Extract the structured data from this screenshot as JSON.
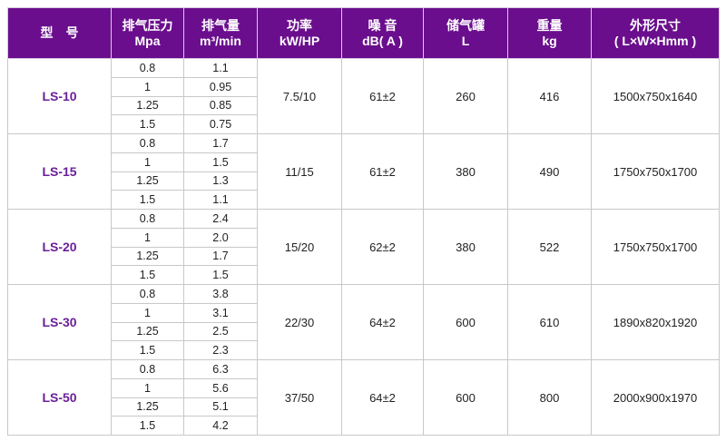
{
  "headers": [
    {
      "l1": "型　号",
      "l2": ""
    },
    {
      "l1": "排气压力",
      "l2": "Mpa"
    },
    {
      "l1": "排气量",
      "l2": "m³/min"
    },
    {
      "l1": "功率",
      "l2": "kW/HP"
    },
    {
      "l1": "噪 音",
      "l2": "dB( A )"
    },
    {
      "l1": "储气罐",
      "l2": "L"
    },
    {
      "l1": "重量",
      "l2": "kg"
    },
    {
      "l1": "外形尺寸",
      "l2": "( L×W×Hmm )"
    }
  ],
  "colors": {
    "header_bg": "#6a0e8d",
    "model_text": "#6b1f9a"
  },
  "rows": [
    {
      "model": "LS-10",
      "pressure": [
        "0.8",
        "1",
        "1.25",
        "1.5"
      ],
      "flow": [
        "1.1",
        "0.95",
        "0.85",
        "0.75"
      ],
      "power": "7.5/10",
      "noise": "61±2",
      "tank": "260",
      "weight": "416",
      "size": "1500x750x1640"
    },
    {
      "model": "LS-15",
      "pressure": [
        "0.8",
        "1",
        "1.25",
        "1.5"
      ],
      "flow": [
        "1.7",
        "1.5",
        "1.3",
        "1.1"
      ],
      "power": "11/15",
      "noise": "61±2",
      "tank": "380",
      "weight": "490",
      "size": "1750x750x1700"
    },
    {
      "model": "LS-20",
      "pressure": [
        "0.8",
        "1",
        "1.25",
        "1.5"
      ],
      "flow": [
        "2.4",
        "2.0",
        "1.7",
        "1.5"
      ],
      "power": "15/20",
      "noise": "62±2",
      "tank": "380",
      "weight": "522",
      "size": "1750x750x1700"
    },
    {
      "model": "LS-30",
      "pressure": [
        "0.8",
        "1",
        "1.25",
        "1.5"
      ],
      "flow": [
        "3.8",
        "3.1",
        "2.5",
        "2.3"
      ],
      "power": "22/30",
      "noise": "64±2",
      "tank": "600",
      "weight": "610",
      "size": "1890x820x1920"
    },
    {
      "model": "LS-50",
      "pressure": [
        "0.8",
        "1",
        "1.25",
        "1.5"
      ],
      "flow": [
        "6.3",
        "5.6",
        "5.1",
        "4.2"
      ],
      "power": "37/50",
      "noise": "64±2",
      "tank": "600",
      "weight": "800",
      "size": "2000x900x1970"
    }
  ]
}
